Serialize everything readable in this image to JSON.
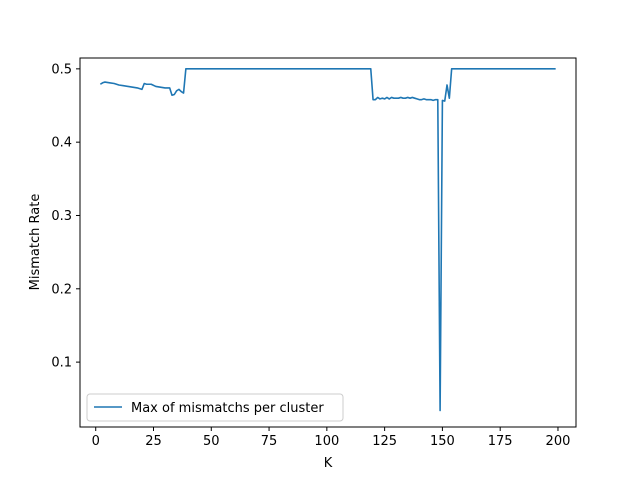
{
  "chart_data": {
    "type": "line",
    "title": "",
    "xlabel": "K",
    "ylabel": "Mismatch Rate",
    "xlim": [
      -6.8,
      207.8
    ],
    "ylim": [
      0.0115,
      0.5148
    ],
    "xticks": [
      0,
      25,
      50,
      75,
      100,
      125,
      150,
      175,
      200
    ],
    "yticks": [
      0.1,
      0.2,
      0.3,
      0.4,
      0.5
    ],
    "xtick_labels": [
      "0",
      "25",
      "50",
      "75",
      "100",
      "125",
      "150",
      "175",
      "200"
    ],
    "ytick_labels": [
      "0.1",
      "0.2",
      "0.3",
      "0.4",
      "0.5"
    ],
    "grid": false,
    "legend_position": "lower-left",
    "series": [
      {
        "name": "Max of mismatchs per cluster",
        "color": "#1f77b4",
        "x": [
          2,
          3,
          4,
          6,
          8,
          10,
          12,
          14,
          16,
          18,
          20,
          21,
          22,
          24,
          26,
          28,
          30,
          32,
          33,
          34,
          35,
          36,
          37,
          38,
          39,
          40,
          50,
          60,
          70,
          80,
          90,
          100,
          110,
          119,
          120,
          121,
          122,
          123,
          124,
          125,
          126,
          127,
          128,
          129,
          130,
          131,
          132,
          133,
          134,
          135,
          136,
          137,
          138,
          139,
          140,
          141,
          142,
          143,
          144,
          145,
          146,
          147,
          148,
          149,
          150,
          151,
          152,
          153,
          154,
          155,
          160,
          170,
          180,
          190,
          199
        ],
        "y": [
          0.479,
          0.481,
          0.482,
          0.481,
          0.48,
          0.478,
          0.477,
          0.476,
          0.475,
          0.474,
          0.472,
          0.48,
          0.479,
          0.479,
          0.476,
          0.475,
          0.474,
          0.474,
          0.464,
          0.465,
          0.47,
          0.472,
          0.469,
          0.467,
          0.5,
          0.5,
          0.5,
          0.5,
          0.5,
          0.5,
          0.5,
          0.5,
          0.5,
          0.5,
          0.458,
          0.458,
          0.461,
          0.459,
          0.46,
          0.459,
          0.461,
          0.459,
          0.461,
          0.46,
          0.46,
          0.46,
          0.461,
          0.46,
          0.46,
          0.461,
          0.46,
          0.461,
          0.46,
          0.459,
          0.458,
          0.458,
          0.459,
          0.458,
          0.458,
          0.458,
          0.457,
          0.458,
          0.458,
          0.034,
          0.457,
          0.456,
          0.478,
          0.46,
          0.5,
          0.5,
          0.5,
          0.5,
          0.5,
          0.5,
          0.5
        ]
      }
    ]
  }
}
